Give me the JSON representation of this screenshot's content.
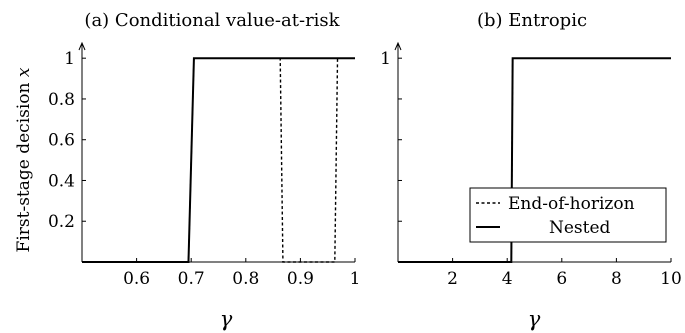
{
  "chart_data": [
    {
      "type": "line",
      "title": "(a) Conditional value-at-risk",
      "xlabel": "γ",
      "ylabel": "First-stage decision x",
      "xlim": [
        0.5,
        1.0
      ],
      "ylim": [
        0,
        1.05
      ],
      "xticks": [
        0.6,
        0.7,
        0.8,
        0.9,
        1.0
      ],
      "xtick_labels": [
        "0.6",
        "0.7",
        "0.8",
        "0.9",
        "1"
      ],
      "yticks": [
        0.2,
        0.4,
        0.6,
        0.8,
        1.0
      ],
      "ytick_labels": [
        "0.2",
        "0.4",
        "0.6",
        "0.8",
        "1"
      ],
      "grid": false,
      "series": [
        {
          "name": "Nested",
          "style": "solid",
          "points": [
            [
              0.5,
              0
            ],
            [
              0.695,
              0
            ],
            [
              0.705,
              1
            ],
            [
              1.0,
              1
            ]
          ]
        },
        {
          "name": "End-of-horizon",
          "style": "dashed",
          "points": [
            [
              0.5,
              0
            ],
            [
              0.695,
              0
            ],
            [
              0.705,
              1
            ],
            [
              0.863,
              1
            ],
            [
              0.868,
              0
            ],
            [
              0.963,
              0
            ],
            [
              0.968,
              1
            ],
            [
              1.0,
              1
            ]
          ]
        }
      ]
    },
    {
      "type": "line",
      "title": "(b) Entropic",
      "xlabel": "γ",
      "ylabel": "",
      "xlim": [
        0,
        10
      ],
      "ylim": [
        0,
        1.05
      ],
      "xticks": [
        2,
        4,
        6,
        8,
        10
      ],
      "xtick_labels": [
        "2",
        "4",
        "6",
        "8",
        "10"
      ],
      "yticks": [
        0.2,
        0.4,
        0.6,
        0.8,
        1.0
      ],
      "ytick_labels": [
        "",
        "",
        "",
        "",
        "1"
      ],
      "grid": false,
      "legend": {
        "position": "bottom-right",
        "entries": [
          "End-of-horizon",
          "Nested"
        ]
      },
      "series": [
        {
          "name": "Nested",
          "style": "solid",
          "points": [
            [
              0,
              0
            ],
            [
              4.15,
              0
            ],
            [
              4.2,
              1
            ],
            [
              10,
              1
            ]
          ]
        },
        {
          "name": "End-of-horizon",
          "style": "dashed",
          "points": [
            [
              0,
              0
            ],
            [
              4.15,
              0
            ],
            [
              4.2,
              1
            ],
            [
              10,
              1
            ]
          ]
        }
      ]
    }
  ]
}
